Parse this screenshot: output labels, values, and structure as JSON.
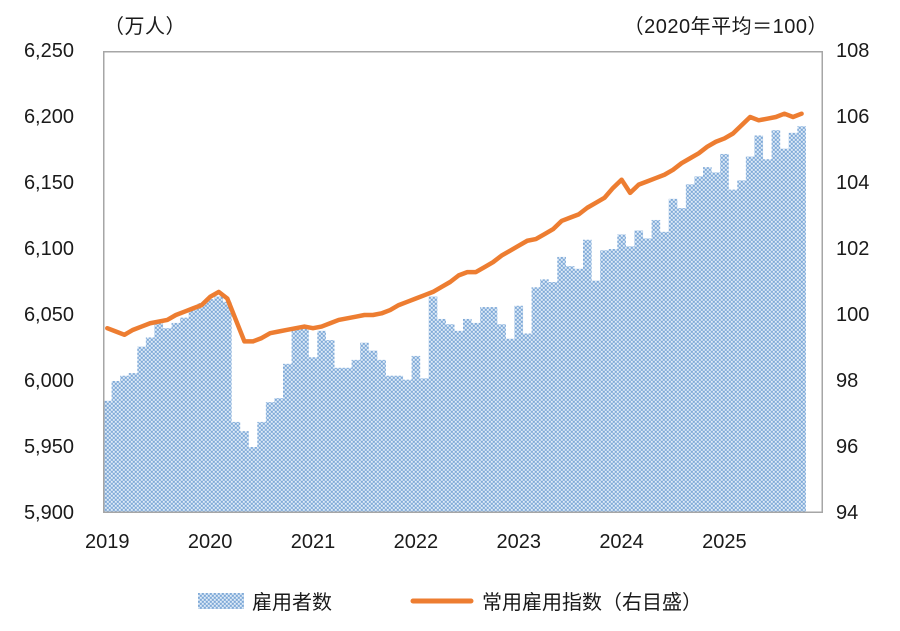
{
  "header": {
    "left_unit_label": "（万人）",
    "right_unit_label": "（2020年平均＝100）"
  },
  "colors": {
    "bar_base": "#AECBEA",
    "bar_dark": "#7FA9D6",
    "bar_light": "#FFFFFF",
    "line": "#ED7D31",
    "frame": "#A6A6A6",
    "text": "#1A1A1A"
  },
  "legend": {
    "items": [
      {
        "label": "雇用者数",
        "swatch": "bar-pattern-swatch"
      },
      {
        "label": "常用雇用指数（右目盛）",
        "swatch": "orange-line-swatch"
      }
    ]
  },
  "chart_data": {
    "type": "bar+line",
    "title": "",
    "left_axis": {
      "label": "（万人）",
      "min": 5900,
      "max": 6250,
      "tick_step": 50,
      "tick_labels": [
        "6,250",
        "6,200",
        "6,150",
        "6,100",
        "6,050",
        "6,000",
        "5,950",
        "5,900"
      ]
    },
    "right_axis": {
      "label": "（2020年平均＝100）",
      "min": 94,
      "max": 108,
      "tick_step": 2,
      "tick_labels": [
        "108",
        "106",
        "104",
        "102",
        "100",
        "98",
        "96",
        "94"
      ]
    },
    "x_axis": {
      "year_labels": [
        "2019",
        "2020",
        "2021",
        "2022",
        "2023",
        "2024",
        "2025"
      ],
      "months_per_year": 12,
      "n_slots": 84,
      "x_start": "2019-01",
      "x_end": "2025-10"
    },
    "grid": "off",
    "legend_position": "bottom-center",
    "series": [
      {
        "name": "雇用者数",
        "type": "bar",
        "axis": "left",
        "values": [
          5985,
          6000,
          6004,
          6006,
          6026,
          6033,
          6044,
          6040,
          6044,
          6048,
          6055,
          6059,
          6062,
          6064,
          6060,
          5969,
          5962,
          5950,
          5969,
          5984,
          5987,
          6013,
          6039,
          6040,
          6018,
          6038,
          6031,
          6010,
          6010,
          6016,
          6029,
          6023,
          6016,
          6004,
          6004,
          6001,
          6019,
          6002,
          6064,
          6047,
          6043,
          6038,
          6047,
          6044,
          6056,
          6056,
          6043,
          6032,
          6057,
          6036,
          6071,
          6077,
          6075,
          6094,
          6087,
          6085,
          6107,
          6076,
          6099,
          6100,
          6111,
          6102,
          6114,
          6108,
          6122,
          6113,
          6138,
          6131,
          6149,
          6155,
          6162,
          6158,
          6172,
          6145,
          6152,
          6170,
          6186,
          6168,
          6190,
          6176,
          6188,
          6193
        ]
      },
      {
        "name": "常用雇用指数（右目盛）",
        "type": "line",
        "axis": "right",
        "values": [
          99.6,
          99.5,
          99.4,
          99.55,
          99.65,
          99.75,
          99.8,
          99.85,
          100.0,
          100.1,
          100.2,
          100.3,
          100.55,
          100.7,
          100.5,
          99.85,
          99.2,
          99.2,
          99.3,
          99.45,
          99.5,
          99.55,
          99.6,
          99.65,
          99.6,
          99.65,
          99.75,
          99.85,
          99.9,
          99.95,
          100.0,
          100.0,
          100.05,
          100.15,
          100.3,
          100.4,
          100.5,
          100.6,
          100.7,
          100.85,
          101.0,
          101.2,
          101.3,
          101.3,
          101.45,
          101.6,
          101.8,
          101.95,
          102.1,
          102.25,
          102.3,
          102.45,
          102.6,
          102.85,
          102.95,
          103.05,
          103.25,
          103.4,
          103.55,
          103.85,
          104.1,
          103.7,
          103.95,
          104.05,
          104.15,
          104.25,
          104.4,
          104.6,
          104.75,
          104.9,
          105.1,
          105.25,
          105.35,
          105.5,
          105.75,
          106.0,
          105.9,
          105.95,
          106.0,
          106.1,
          106.0,
          106.1
        ]
      }
    ]
  }
}
